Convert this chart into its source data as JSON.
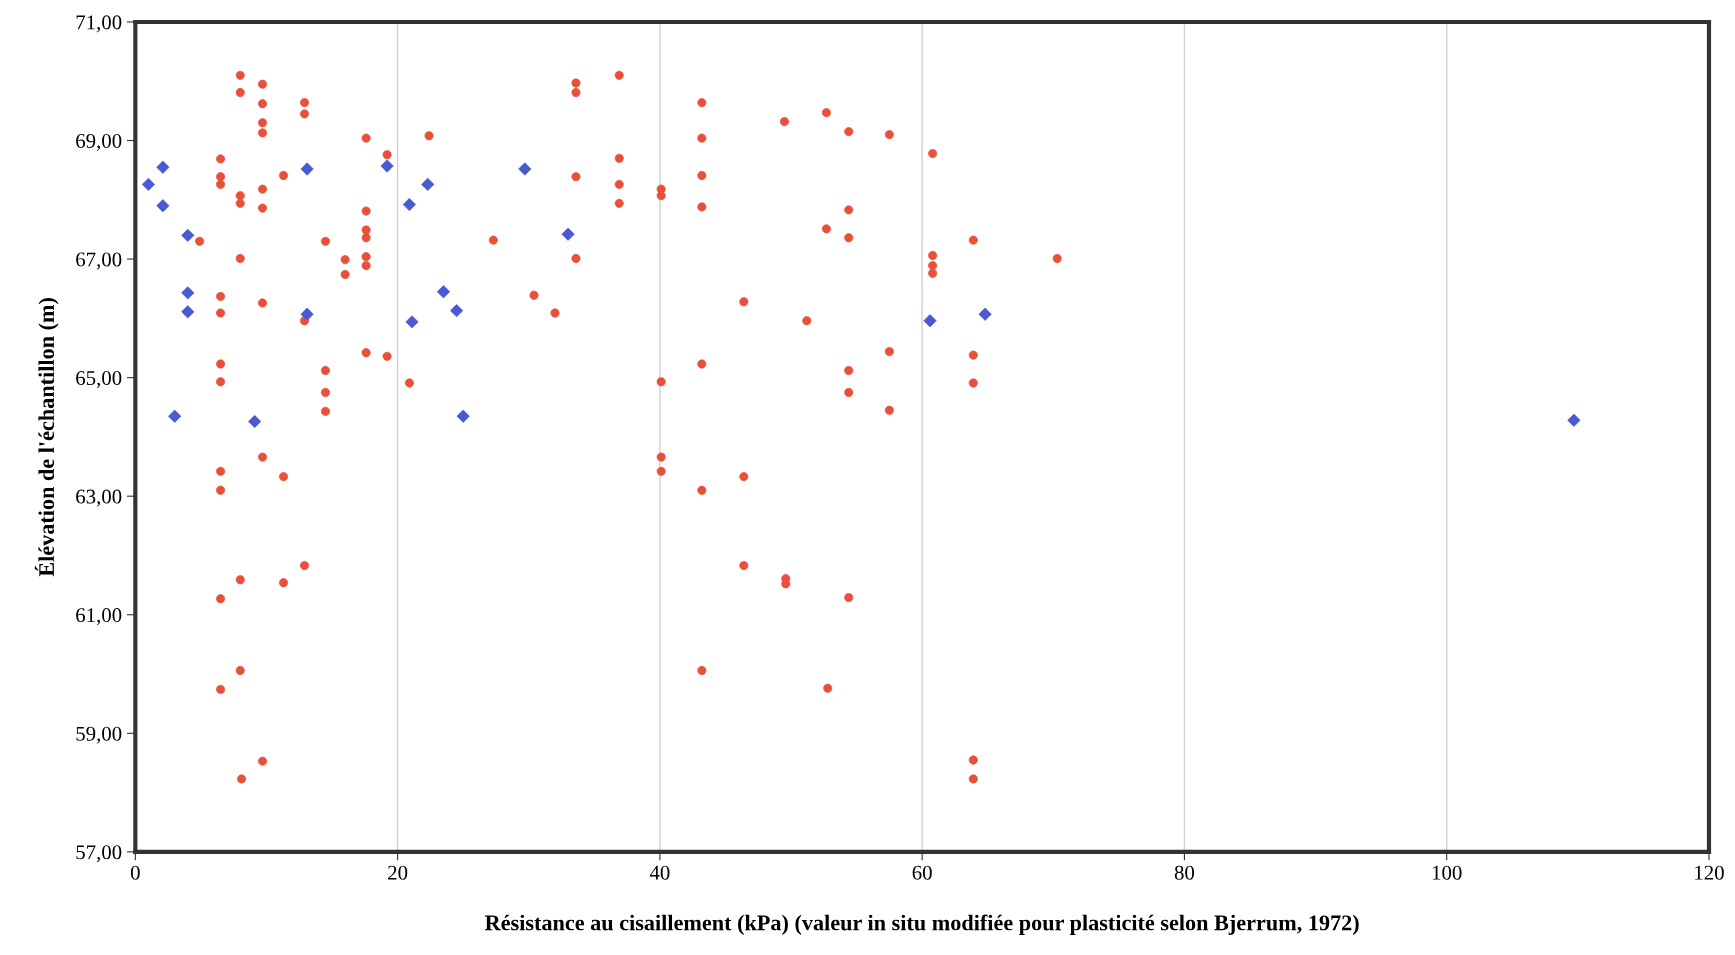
{
  "chart_data": {
    "type": "scatter",
    "xlabel": "Résistance au cisaillement (kPa) (valeur in situ modifiée pour plasticité selon Bjerrum, 1972)",
    "ylabel": "Élévation de l'échantillon (m)",
    "xlim": [
      0,
      120
    ],
    "xticks": [
      0,
      20,
      40,
      60,
      80,
      100,
      120
    ],
    "ylim": [
      57,
      71
    ],
    "yticks": [
      {
        "value": 57,
        "label": "57,00"
      },
      {
        "value": 59,
        "label": "59,00"
      },
      {
        "value": 61,
        "label": "61,00"
      },
      {
        "value": 63,
        "label": "63,00"
      },
      {
        "value": 65,
        "label": "65,00"
      },
      {
        "value": 67,
        "label": "67,00"
      },
      {
        "value": 69,
        "label": "69,00"
      },
      {
        "value": 71,
        "label": "71,00"
      }
    ],
    "grid": "x",
    "series": [
      {
        "color": "#e8503c",
        "marker": "circle",
        "x": [
          8.0,
          9.7,
          8.0,
          9.7,
          9.7,
          9.7,
          12.9,
          12.9,
          6.5,
          6.5,
          6.5,
          8.0,
          8.0,
          9.7,
          9.7,
          11.3,
          17.6,
          19.2,
          22.4,
          4.9,
          14.5,
          17.6,
          17.6,
          17.6,
          17.6,
          17.6,
          16.0,
          16.0,
          8.0,
          6.5,
          6.5,
          9.7,
          12.9,
          17.6,
          19.2,
          14.5,
          14.5,
          14.5,
          20.9,
          6.5,
          6.5,
          9.7,
          11.3,
          6.5,
          6.5,
          8.0,
          11.3,
          12.9,
          6.5,
          8.0,
          6.5,
          9.7,
          8.1
        ],
        "values": [
          70.1,
          69.95,
          69.81,
          69.62,
          69.3,
          69.13,
          69.64,
          69.45,
          68.69,
          68.39,
          68.26,
          68.07,
          67.94,
          68.18,
          67.86,
          68.41,
          69.04,
          68.76,
          69.08,
          67.3,
          67.3,
          67.81,
          67.49,
          67.36,
          67.04,
          66.89,
          66.99,
          66.74,
          67.01,
          66.37,
          66.09,
          66.26,
          65.96,
          65.42,
          65.36,
          65.12,
          64.75,
          64.43,
          64.91,
          65.23,
          64.93,
          63.66,
          63.33,
          63.42,
          63.1,
          61.59,
          61.54,
          61.83,
          61.27,
          60.06,
          59.74,
          58.53,
          58.23
        ]
      },
      {
        "color": "#e8503c",
        "marker": "circle",
        "x": [
          33.6,
          33.6,
          36.9,
          43.2,
          43.2,
          49.5,
          52.7,
          54.4,
          57.5,
          60.8,
          36.9,
          33.6,
          36.9,
          36.9,
          40.1,
          40.1,
          43.2,
          43.2,
          54.4,
          52.7,
          54.4,
          63.9,
          27.3,
          33.6,
          60.8,
          60.8,
          60.8,
          70.3,
          30.4,
          32.0,
          46.4,
          51.2,
          57.5,
          63.9,
          43.2,
          54.4,
          54.4,
          40.1,
          63.9,
          57.5,
          40.1,
          40.1,
          43.2,
          46.4,
          46.4,
          49.6,
          49.6,
          54.4,
          43.2,
          52.8,
          63.9,
          63.9
        ],
        "values": [
          69.97,
          69.81,
          70.1,
          69.64,
          69.04,
          69.32,
          69.47,
          69.15,
          69.1,
          68.78,
          68.7,
          68.39,
          68.26,
          67.94,
          68.18,
          68.07,
          68.41,
          67.88,
          67.83,
          67.51,
          67.36,
          67.32,
          67.32,
          67.01,
          67.06,
          66.89,
          66.76,
          67.01,
          66.39,
          66.09,
          66.28,
          65.96,
          65.44,
          65.38,
          65.23,
          65.12,
          64.75,
          64.93,
          64.91,
          64.45,
          63.66,
          63.42,
          63.1,
          63.33,
          61.83,
          61.61,
          61.52,
          61.29,
          60.06,
          59.76,
          58.55,
          58.23
        ]
      },
      {
        "color": "#4a5ad0",
        "marker": "diamond",
        "x": [
          1.0,
          2.1,
          2.1,
          4.0,
          4.0,
          4.0,
          3.0,
          9.1,
          13.1,
          13.1,
          21.1
        ],
        "values": [
          68.26,
          68.55,
          67.9,
          67.4,
          66.43,
          66.11,
          64.35,
          64.26,
          68.52,
          66.07,
          65.94
        ]
      },
      {
        "color": "#4a5ad0",
        "marker": "diamond",
        "x": [
          19.2,
          20.9,
          22.3,
          23.5,
          24.5,
          25.0,
          29.7,
          33.0,
          60.6,
          64.8,
          109.7
        ],
        "values": [
          68.57,
          67.92,
          68.26,
          66.45,
          66.13,
          64.35,
          68.52,
          67.42,
          65.96,
          66.07,
          64.28
        ]
      }
    ]
  }
}
